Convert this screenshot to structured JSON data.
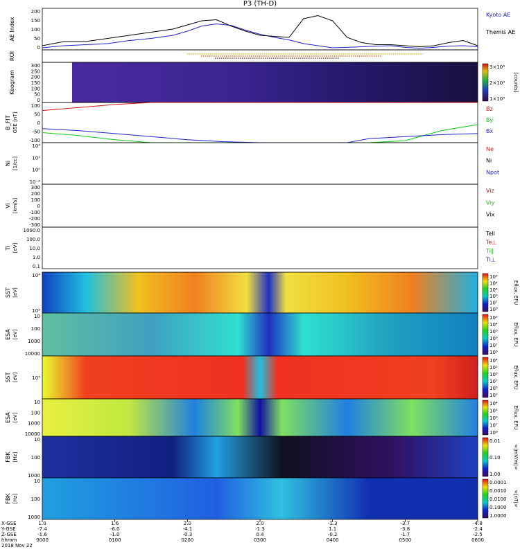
{
  "title": "P3 (TH-D)",
  "colors": {
    "blue": "#1f1fc8",
    "black": "#000000",
    "red": "#d21414",
    "green": "#10c810",
    "orange": "#e07800"
  },
  "chart_data": [
    {
      "type": "line",
      "ylabel": "AE Index",
      "yticks": [
        "0",
        "50",
        "100",
        "150",
        "200"
      ],
      "ylim": [
        0,
        200
      ],
      "x": [
        0,
        0.3,
        0.6,
        0.9,
        1.2,
        1.5,
        1.8,
        2.0,
        2.2,
        2.4,
        2.6,
        2.8,
        3.0,
        3.2,
        3.4,
        3.6,
        3.8,
        4.0,
        4.2,
        4.4,
        4.6,
        4.8,
        5.0,
        5.2,
        5.4,
        5.6,
        5.8,
        6.0
      ],
      "series": [
        {
          "name": "Kyoto AE",
          "color": "blue",
          "values": [
            10,
            20,
            25,
            30,
            45,
            55,
            70,
            90,
            115,
            125,
            118,
            95,
            75,
            60,
            48,
            30,
            20,
            10,
            12,
            15,
            18,
            20,
            12,
            8,
            12,
            18,
            20,
            15
          ]
        },
        {
          "name": "Themis AE",
          "color": "black",
          "values": [
            20,
            40,
            40,
            55,
            70,
            85,
            100,
            120,
            140,
            145,
            115,
            90,
            70,
            65,
            60,
            150,
            165,
            140,
            60,
            35,
            25,
            25,
            20,
            15,
            20,
            35,
            45,
            20
          ]
        }
      ],
      "legend_placement": "right"
    },
    {
      "type": "line",
      "ylabel": "ROI",
      "yticks": [],
      "note_rows": 3
    },
    {
      "type": "heatmap",
      "ylabel": "Keogram",
      "yticks": [
        "0",
        "50",
        "100",
        "150",
        "200",
        "250",
        "300"
      ],
      "ylim": [
        0,
        300
      ],
      "colorbar_label": "[counts]",
      "colorbar_ticks": [
        "1×10⁴",
        "2×10⁴",
        "3×10⁴"
      ]
    },
    {
      "type": "line",
      "ylabel": "B_FIT",
      "units": "GSE [nT]",
      "yticks": [
        "-100",
        "-50",
        "0",
        "50",
        "100"
      ],
      "ylim": [
        -100,
        100
      ],
      "x": [
        0,
        0.5,
        1.0,
        1.5,
        2.0,
        2.5,
        3.0,
        3.5,
        4.0,
        4.2,
        4.5,
        5.0,
        5.5,
        6.0
      ],
      "series": [
        {
          "name": "Bz",
          "color": "red",
          "values": [
            60,
            75,
            90,
            100,
            100,
            100,
            100,
            100,
            100,
            100,
            100,
            100,
            100,
            100
          ]
        },
        {
          "name": "By",
          "color": "green",
          "values": [
            -50,
            -65,
            -85,
            -100,
            -100,
            -100,
            -100,
            -100,
            -100,
            -100,
            -100,
            -90,
            -40,
            -10
          ]
        },
        {
          "name": "Bx",
          "color": "blue",
          "values": [
            -30,
            -40,
            -55,
            -70,
            -85,
            -95,
            -100,
            -100,
            -100,
            -100,
            -80,
            -70,
            -60,
            -55
          ]
        }
      ]
    },
    {
      "type": "line",
      "ylabel": "Ni",
      "units": "[1/cc]",
      "yticks": [
        "10⁻⁴",
        "10⁰",
        "10²",
        "10⁴"
      ],
      "series": [
        {
          "name": "Ne",
          "color": "red"
        },
        {
          "name": "Ni",
          "color": "black"
        },
        {
          "name": "Npot",
          "color": "blue"
        }
      ]
    },
    {
      "type": "line",
      "ylabel": "Vi",
      "units": "[km/s]",
      "yticks": [
        "-300",
        "-200",
        "-100",
        "0",
        "100",
        "200",
        "300"
      ],
      "ylim": [
        -300,
        300
      ],
      "series": [
        {
          "name": "Viz",
          "color": "red"
        },
        {
          "name": "Viy",
          "color": "green"
        },
        {
          "name": "Vix",
          "color": "black"
        }
      ]
    },
    {
      "type": "line",
      "ylabel": "Ti",
      "units": "[eV]",
      "yticks": [
        "0.1",
        "1.0",
        "10.0",
        "100.0",
        "1000.0"
      ],
      "series": [
        {
          "name": "Tell",
          "color": "black"
        },
        {
          "name": "Te⊥",
          "color": "red"
        },
        {
          "name": "Ti‖",
          "color": "green"
        },
        {
          "name": "Ti⊥",
          "color": "blue"
        }
      ]
    },
    {
      "type": "heatmap",
      "ylabel": "SST",
      "units": "[eV]",
      "yticks": [
        "10⁵",
        "10⁴"
      ],
      "colorbar_label": "Eflux, EFU",
      "colorbar_ticks": [
        "10⁸",
        "10⁷",
        "10⁶",
        "10⁵",
        "10⁴",
        "10³"
      ]
    },
    {
      "type": "heatmap",
      "ylabel": "ESA",
      "units": "[eV]",
      "yticks": [
        "10000",
        "1000",
        "100",
        "10"
      ],
      "colorbar_label": "Eflux, EFU",
      "colorbar_ticks": [
        "10⁸",
        "10⁷",
        "10⁶",
        "10⁵",
        "10⁴",
        "10³"
      ]
    },
    {
      "type": "heatmap",
      "ylabel": "SST",
      "units": "[eV]",
      "yticks": [
        "10⁵"
      ],
      "colorbar_label": "Eflux, EFU",
      "colorbar_ticks": [
        "10⁹",
        "10⁸",
        "10⁷",
        "10⁶",
        "10⁵",
        "10⁴"
      ]
    },
    {
      "type": "heatmap",
      "ylabel": "ESA",
      "units": "[eV]",
      "yticks": [
        "10000",
        "1000",
        "100",
        "10"
      ],
      "colorbar_label": "Eflux, EFU",
      "colorbar_ticks": [
        "10⁸",
        "10⁷",
        "10⁶",
        "10⁵",
        "10⁴"
      ]
    },
    {
      "type": "heatmap",
      "ylabel": "FBK",
      "units": "[Hz]",
      "yticks": [
        "1000",
        "100",
        "10"
      ],
      "colorbar_label": "<|mV/m|>",
      "colorbar_ticks": [
        "1.00",
        "0.10",
        "0.01"
      ]
    },
    {
      "type": "heatmap",
      "ylabel": "FBK",
      "units": "[Hz]",
      "yticks": [
        "1000",
        "100",
        "10"
      ],
      "colorbar_label": "<|nT|>",
      "colorbar_ticks": [
        "1.0000",
        "0.1000",
        "0.0100",
        "0.0010",
        "0.0001"
      ]
    }
  ],
  "xaxis": {
    "row_labels": [
      "X-GSE",
      "Y-GSE",
      "Z-GSE",
      "hhmm",
      "2018 Nov 22"
    ],
    "ticks": [
      {
        "x": "1.0",
        "y": "-7.4",
        "z": "-1.6",
        "t": "0000"
      },
      {
        "x": "1.6",
        "y": "-6.0",
        "z": "-1.0",
        "t": "0100"
      },
      {
        "x": "2.0",
        "y": "-4.1",
        "z": "-0.3",
        "t": "0200"
      },
      {
        "x": "2.0",
        "y": "-1.3",
        "z": "0.4",
        "t": "0300"
      },
      {
        "x": "-1.3",
        "y": "1.1",
        "z": "-0.2",
        "t": "0400"
      },
      {
        "x": "-3.7",
        "y": "-3.8",
        "z": "-1.7",
        "t": "0500"
      },
      {
        "x": "-4.8",
        "y": "-2.4",
        "z": "-2.5",
        "t": "0600"
      }
    ]
  }
}
